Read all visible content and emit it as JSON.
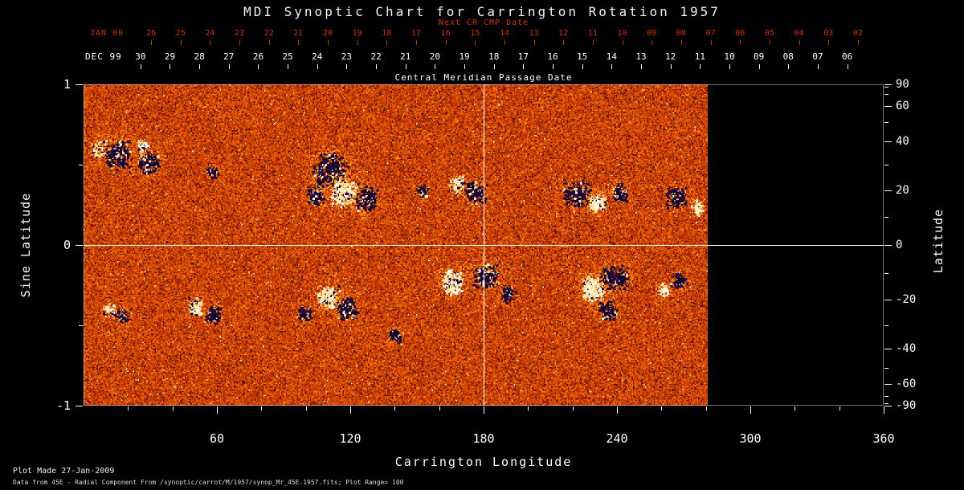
{
  "title": "MDI Synoptic Chart for Carrington Rotation 1957",
  "colors": {
    "background": "#000000",
    "foreground": "#ffffff",
    "date_axis_red": "#cc3500",
    "crosshair": "#ffffff"
  },
  "top_axis": {
    "next_cr_label": "Next CR CMP Date",
    "jan_label": "JAN 00",
    "jan_days": [
      "26",
      "25",
      "24",
      "23",
      "22",
      "21",
      "20",
      "19",
      "18",
      "17",
      "16",
      "15",
      "14",
      "13",
      "12",
      "11",
      "10",
      "09",
      "08",
      "07",
      "06",
      "05",
      "04",
      "03",
      "02"
    ],
    "dec_label": "DEC 99",
    "dec_days": [
      "30",
      "29",
      "28",
      "27",
      "26",
      "25",
      "24",
      "23",
      "22",
      "21",
      "20",
      "19",
      "18",
      "17",
      "16",
      "15",
      "14",
      "13",
      "12",
      "11",
      "10",
      "09",
      "08",
      "07",
      "06"
    ],
    "cmp_label": "Central Meridian Passage Date",
    "jan_start_longitude": 30.4,
    "dec_start_longitude": 25.6,
    "day_step_longitude": 13.25
  },
  "axes": {
    "left_label": "Sine Latitude",
    "left_ticks": [
      "1",
      "0",
      "-1"
    ],
    "left_minor_ticks": [
      0.5,
      -0.5
    ],
    "right_label": "Latitude",
    "right_ticks": [
      "90",
      "60",
      "40",
      "20",
      "0",
      "-20",
      "-40",
      "-60",
      "-90"
    ],
    "right_minor_ticks": [
      80,
      70,
      50,
      30,
      10,
      -10,
      -30,
      -50,
      -70,
      -80
    ],
    "bottom_label": "Carrington Longitude",
    "bottom_ticks": [
      "60",
      "120",
      "180",
      "240",
      "300",
      "360"
    ],
    "bottom_minor_step": 20
  },
  "footer": {
    "line1": "Plot Made 27-Jan-2009",
    "line2": "Data from 45E - Radial Component From  /synoptic/carrot/M/1957/synop_Mr_45E.1957.fits; Plot Range=  100"
  },
  "chart_data": {
    "type": "heatmap",
    "title": "MDI Synoptic Chart for Carrington Rotation 1957",
    "xlabel": "Carrington Longitude",
    "ylabel": "Sine Latitude",
    "ylabel_right": "Latitude",
    "xlim": [
      0,
      360
    ],
    "ylim": [
      -1,
      1
    ],
    "data_longitude_extent": [
      0,
      281
    ],
    "plot_range_gauss": 100,
    "crosshair": {
      "longitude": 180,
      "sine_latitude": 0
    },
    "latitude_ticks_deg": [
      90,
      60,
      40,
      20,
      0,
      -20,
      -40,
      -60,
      -90
    ],
    "field_description": "Radial magnetic field synoptic map; orange background noise, white = positive flux, dark blue/black = negative flux; no data beyond longitude 281",
    "colormap_stops": [
      [
        -1,
        5,
        0,
        25
      ],
      [
        -0.7,
        30,
        10,
        70
      ],
      [
        -0.5,
        55,
        8,
        40
      ],
      [
        -0.3,
        120,
        20,
        5
      ],
      [
        0,
        205,
        62,
        0
      ],
      [
        0.25,
        238,
        98,
        0
      ],
      [
        0.5,
        255,
        152,
        30
      ],
      [
        0.7,
        255,
        200,
        90
      ],
      [
        0.85,
        255,
        235,
        185
      ],
      [
        1,
        255,
        255,
        255
      ]
    ],
    "active_regions": [
      {
        "lon": 7,
        "sin_lat": 0.6,
        "rlon": 2.5,
        "rslat": 0.045,
        "polarity": "positive",
        "dots": 110
      },
      {
        "lon": 15,
        "sin_lat": 0.57,
        "rlon": 4.5,
        "rslat": 0.065,
        "polarity": "negative",
        "dots": 330
      },
      {
        "lon": 29,
        "sin_lat": 0.52,
        "rlon": 3.5,
        "rslat": 0.05,
        "polarity": "negative",
        "dots": 190
      },
      {
        "lon": 26,
        "sin_lat": 0.62,
        "rlon": 2,
        "rslat": 0.03,
        "polarity": "positive",
        "dots": 60
      },
      {
        "lon": 58,
        "sin_lat": 0.46,
        "rlon": 2,
        "rslat": 0.03,
        "polarity": "negative",
        "dots": 55
      },
      {
        "lon": 104,
        "sin_lat": 0.31,
        "rlon": 3,
        "rslat": 0.05,
        "polarity": "negative",
        "dots": 130
      },
      {
        "lon": 111,
        "sin_lat": 0.47,
        "rlon": 5.5,
        "rslat": 0.075,
        "polarity": "negative",
        "dots": 480
      },
      {
        "lon": 117,
        "sin_lat": 0.33,
        "rlon": 4.5,
        "rslat": 0.065,
        "polarity": "positive",
        "dots": 340
      },
      {
        "lon": 127,
        "sin_lat": 0.29,
        "rlon": 3.5,
        "rslat": 0.055,
        "polarity": "negative",
        "dots": 230
      },
      {
        "lon": 152,
        "sin_lat": 0.34,
        "rlon": 2,
        "rslat": 0.03,
        "polarity": "negative",
        "dots": 65
      },
      {
        "lon": 168,
        "sin_lat": 0.38,
        "rlon": 2.5,
        "rslat": 0.04,
        "polarity": "positive",
        "dots": 120
      },
      {
        "lon": 176,
        "sin_lat": 0.33,
        "rlon": 3.5,
        "rslat": 0.05,
        "polarity": "negative",
        "dots": 190
      },
      {
        "lon": 222,
        "sin_lat": 0.32,
        "rlon": 4.5,
        "rslat": 0.06,
        "polarity": "negative",
        "dots": 270
      },
      {
        "lon": 231,
        "sin_lat": 0.27,
        "rlon": 2.5,
        "rslat": 0.04,
        "polarity": "positive",
        "dots": 220
      },
      {
        "lon": 241,
        "sin_lat": 0.33,
        "rlon": 2.5,
        "rslat": 0.04,
        "polarity": "negative",
        "dots": 110
      },
      {
        "lon": 267,
        "sin_lat": 0.3,
        "rlon": 3.5,
        "rslat": 0.05,
        "polarity": "negative",
        "dots": 150
      },
      {
        "lon": 276,
        "sin_lat": 0.24,
        "rlon": 2,
        "rslat": 0.035,
        "polarity": "positive",
        "dots": 70
      },
      {
        "lon": 166,
        "sin_lat": -0.23,
        "rlon": 3.5,
        "rslat": 0.055,
        "polarity": "positive",
        "dots": 300
      },
      {
        "lon": 181,
        "sin_lat": -0.19,
        "rlon": 4.5,
        "rslat": 0.055,
        "polarity": "negative",
        "dots": 290
      },
      {
        "lon": 191,
        "sin_lat": -0.3,
        "rlon": 2.5,
        "rslat": 0.04,
        "polarity": "negative",
        "dots": 100
      },
      {
        "lon": 229,
        "sin_lat": -0.27,
        "rlon": 3.5,
        "rslat": 0.055,
        "polarity": "positive",
        "dots": 430
      },
      {
        "lon": 239,
        "sin_lat": -0.2,
        "rlon": 4.5,
        "rslat": 0.055,
        "polarity": "negative",
        "dots": 280
      },
      {
        "lon": 236,
        "sin_lat": -0.4,
        "rlon": 3.5,
        "rslat": 0.045,
        "polarity": "negative",
        "dots": 140
      },
      {
        "lon": 110,
        "sin_lat": -0.32,
        "rlon": 3.5,
        "rslat": 0.055,
        "polarity": "positive",
        "dots": 240
      },
      {
        "lon": 118,
        "sin_lat": -0.39,
        "rlon": 3.5,
        "rslat": 0.05,
        "polarity": "negative",
        "dots": 210
      },
      {
        "lon": 99,
        "sin_lat": -0.43,
        "rlon": 2.5,
        "rslat": 0.035,
        "polarity": "negative",
        "dots": 90
      },
      {
        "lon": 50,
        "sin_lat": -0.38,
        "rlon": 2.5,
        "rslat": 0.04,
        "polarity": "positive",
        "dots": 130
      },
      {
        "lon": 58,
        "sin_lat": -0.43,
        "rlon": 2.5,
        "rslat": 0.04,
        "polarity": "negative",
        "dots": 130
      },
      {
        "lon": 17,
        "sin_lat": -0.44,
        "rlon": 2.5,
        "rslat": 0.035,
        "polarity": "negative",
        "dots": 90
      },
      {
        "lon": 11,
        "sin_lat": -0.4,
        "rlon": 2,
        "rslat": 0.03,
        "polarity": "positive",
        "dots": 55
      },
      {
        "lon": 140,
        "sin_lat": -0.56,
        "rlon": 2,
        "rslat": 0.03,
        "polarity": "negative",
        "dots": 70
      },
      {
        "lon": 268,
        "sin_lat": -0.22,
        "rlon": 2.5,
        "rslat": 0.04,
        "polarity": "negative",
        "dots": 110
      },
      {
        "lon": 261,
        "sin_lat": -0.28,
        "rlon": 2,
        "rslat": 0.03,
        "polarity": "positive",
        "dots": 70
      }
    ]
  }
}
